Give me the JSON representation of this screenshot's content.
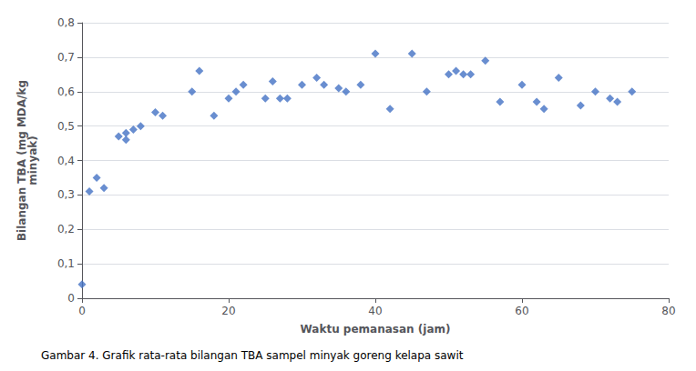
{
  "chart_data": {
    "type": "scatter",
    "title": "Gambar 4. Grafik rata-rata bilangan TBA sampel minyak goreng kelapa sawit",
    "xlabel": "Waktu pemanasan (jam)",
    "ylabel": "Bilangan TBA (mg MDA/kg\nminyak)",
    "x": [
      0,
      1,
      2,
      3,
      5,
      6,
      6,
      7,
      8,
      10,
      11,
      15,
      16,
      18,
      20,
      21,
      22,
      25,
      26,
      27,
      28,
      30,
      32,
      33,
      35,
      36,
      38,
      40,
      42,
      45,
      47,
      50,
      51,
      52,
      53,
      55,
      57,
      60,
      62,
      63,
      65,
      68,
      70,
      72,
      73,
      75
    ],
    "values": [
      0.04,
      0.31,
      0.35,
      0.32,
      0.47,
      0.48,
      0.46,
      0.49,
      0.5,
      0.54,
      0.53,
      0.6,
      0.66,
      0.53,
      0.58,
      0.6,
      0.62,
      0.58,
      0.63,
      0.58,
      0.58,
      0.62,
      0.64,
      0.62,
      0.61,
      0.6,
      0.62,
      0.71,
      0.55,
      0.71,
      0.6,
      0.65,
      0.66,
      0.65,
      0.65,
      0.69,
      0.57,
      0.62,
      0.57,
      0.55,
      0.64,
      0.56,
      0.6,
      0.58,
      0.57,
      0.6
    ],
    "color": "#4472C4",
    "marker": "diamond",
    "xlim": [
      0,
      80
    ],
    "xticks": [
      0,
      20,
      40,
      60,
      80
    ],
    "ylim": [
      0,
      0.8
    ],
    "yticks": [
      0,
      {
        "value": 0.1,
        "label": "0,1"
      },
      {
        "value": 0.2,
        "label": "0,2"
      },
      {
        "value": 0.3,
        "label": "0,3"
      },
      {
        "value": 0.4,
        "label": "0,4"
      },
      {
        "value": 0.5,
        "label": "0,5"
      },
      {
        "value": 0.6,
        "label": "0,6"
      },
      {
        "value": 0.7,
        "label": "0,7"
      },
      {
        "value": 0.8,
        "label": "0,8"
      }
    ],
    "grid": "y"
  }
}
